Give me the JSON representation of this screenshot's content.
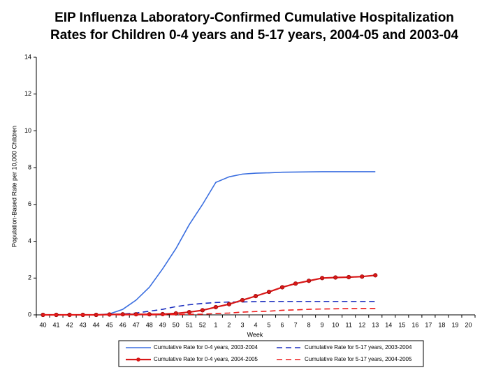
{
  "chart_data": {
    "type": "line",
    "title": [
      "EIP Influenza Laboratory-Confirmed Cumulative Hospitalization",
      "Rates for Children 0-4 years and 5-17 years, 2004-05 and 2003-04"
    ],
    "x_label": "Week",
    "y_label": "Population-Based Rate per 10,000 Children",
    "categories": [
      "40",
      "41",
      "42",
      "43",
      "44",
      "45",
      "46",
      "47",
      "48",
      "49",
      "50",
      "51",
      "52",
      "1",
      "2",
      "3",
      "4",
      "5",
      "6",
      "7",
      "8",
      "9",
      "10",
      "11",
      "12",
      "13",
      "14",
      "15",
      "16",
      "17",
      "18",
      "19",
      "20"
    ],
    "ylim": [
      0,
      14
    ],
    "yticks": [
      0,
      2,
      4,
      6,
      8,
      10,
      12,
      14
    ],
    "grid": false,
    "series": [
      {
        "name": "Cumulative Rate for 0-4 years, 2003-2004",
        "color": "#3b6fe0",
        "dash": false,
        "marker": false,
        "values": [
          0,
          0,
          0,
          0,
          0,
          0.05,
          0.3,
          0.8,
          1.5,
          2.5,
          3.6,
          4.9,
          6.0,
          7.2,
          7.5,
          7.65,
          7.7,
          7.72,
          7.75,
          7.76,
          7.77,
          7.78,
          7.78,
          7.78,
          7.78,
          7.78,
          null,
          null,
          null,
          null,
          null,
          null,
          null
        ]
      },
      {
        "name": "Cumulative Rate for 5-17 years, 2003-2004",
        "color": "#1a2dbf",
        "dash": true,
        "marker": false,
        "values": [
          0,
          0,
          0,
          0,
          0,
          0.02,
          0.05,
          0.1,
          0.2,
          0.3,
          0.45,
          0.55,
          0.62,
          0.67,
          0.7,
          0.7,
          0.72,
          0.73,
          0.73,
          0.73,
          0.73,
          0.73,
          0.73,
          0.73,
          0.73,
          0.73,
          null,
          null,
          null,
          null,
          null,
          null,
          null
        ]
      },
      {
        "name": "Cumulative Rate for 0-4 years, 2004-2005",
        "color": "#d81818",
        "dash": false,
        "marker": true,
        "values": [
          0,
          0,
          0,
          0,
          0,
          0.02,
          0.03,
          0.03,
          0.03,
          0.04,
          0.08,
          0.15,
          0.25,
          0.42,
          0.58,
          0.8,
          1.02,
          1.25,
          1.5,
          1.7,
          1.85,
          2.0,
          2.03,
          2.05,
          2.08,
          2.15,
          null,
          null,
          null,
          null,
          null,
          null,
          null
        ]
      },
      {
        "name": "Cumulative Rate for 5-17 years, 2004-2005",
        "color": "#ee1c1c",
        "dash": true,
        "marker": false,
        "values": [
          0,
          0,
          0,
          0,
          0,
          0,
          0,
          0,
          0,
          0,
          0.02,
          0.03,
          0.04,
          0.07,
          0.1,
          0.15,
          0.18,
          0.2,
          0.25,
          0.27,
          0.3,
          0.32,
          0.33,
          0.34,
          0.35,
          0.35,
          null,
          null,
          null,
          null,
          null,
          null,
          null
        ]
      }
    ]
  }
}
